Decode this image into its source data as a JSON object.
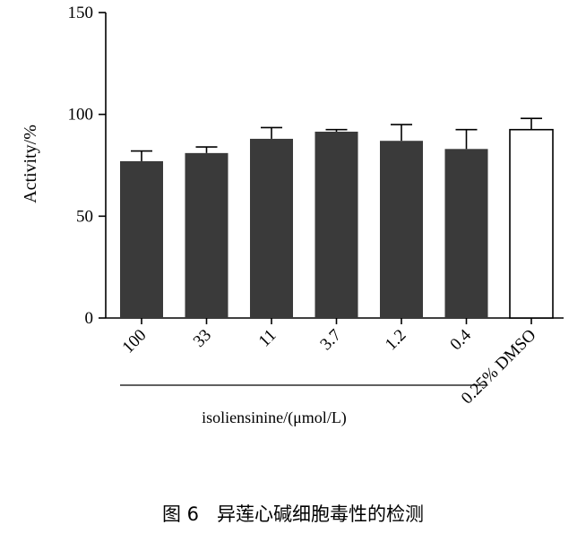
{
  "chart_data": {
    "type": "bar",
    "categories": [
      "100",
      "33",
      "11",
      "3.7",
      "1.2",
      "0.4",
      "0.25% DMSO"
    ],
    "values": [
      77,
      81,
      88,
      91.5,
      87,
      83,
      92.5
    ],
    "errors": [
      5,
      3,
      5.5,
      1,
      8,
      9.5,
      5.5
    ],
    "ylabel": "Activity/%",
    "ylim": [
      0,
      150
    ],
    "yticks": [
      0,
      50,
      100,
      150
    ],
    "group_label": "isoliensinine/(μmol/L)",
    "group_categories": [
      "100",
      "33",
      "11",
      "3.7",
      "1.2",
      "0.4"
    ],
    "colors": {
      "treatment": "#3a3a3a",
      "control": "#ffffff",
      "axis": "#000000"
    },
    "grid": false
  },
  "figure": {
    "caption_label": "图 6",
    "caption_text": "异莲心碱细胞毒性的检测"
  }
}
